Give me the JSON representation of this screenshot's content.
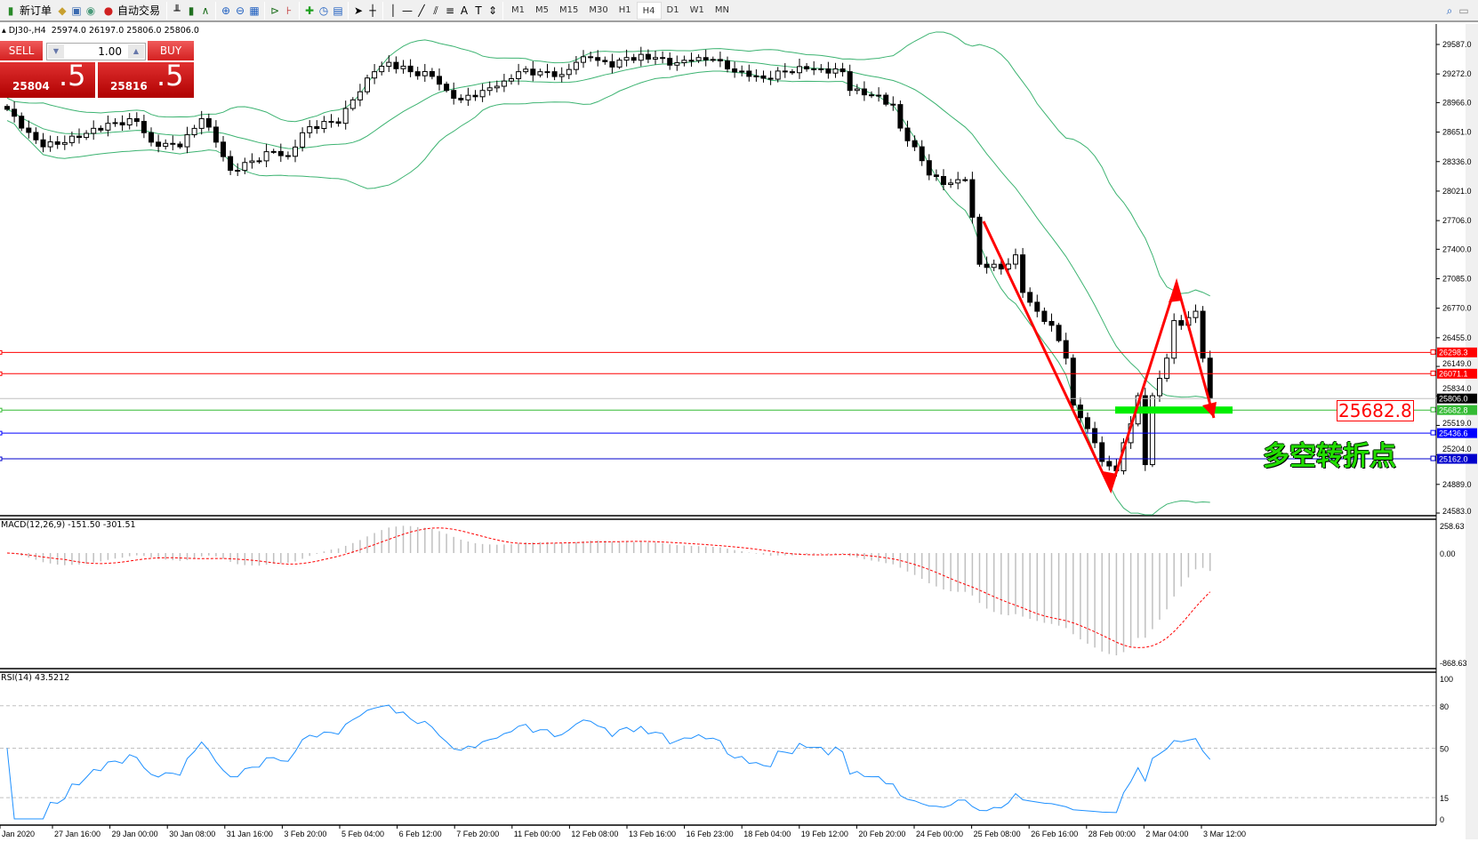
{
  "toolbar": {
    "new_order": "新订单",
    "auto_trading": "自动交易",
    "timeframes": [
      "M1",
      "M5",
      "M15",
      "M30",
      "H1",
      "H4",
      "D1",
      "W1",
      "MN"
    ],
    "active_timeframe": "H4",
    "icons": [
      "new-order-icon",
      "history-icon",
      "market-watch-icon",
      "signal-icon",
      "auto-trading-icon",
      "bar-chart-icon",
      "candlestick-icon",
      "line-chart-icon",
      "zoom-in-icon",
      "zoom-out-icon",
      "tile-windows-icon",
      "auto-scroll-icon",
      "chart-shift-icon",
      "indicators-icon",
      "periods-icon",
      "templates-icon",
      "cursor-icon",
      "crosshair-icon",
      "vertical-line-icon",
      "horizontal-line-icon",
      "trendline-icon",
      "equidistant-channel-icon",
      "fibonacci-icon",
      "text-icon",
      "text-label-icon",
      "arrows-icon",
      "search-icon",
      "chat-icon"
    ]
  },
  "header": {
    "symbol": "DJ30-,H4",
    "ohlc": "25974.0 26197.0 25806.0 25806.0"
  },
  "trade_panel": {
    "sell_label": "SELL",
    "buy_label": "BUY",
    "lot": "1.00",
    "sell_price_main": "25804",
    "sell_price_big": ".5",
    "buy_price_main": "25816",
    "buy_price_big": ".5"
  },
  "price_axis": [
    "29587.0",
    "29272.0",
    "28966.0",
    "28651.0",
    "28336.0",
    "28021.0",
    "27706.0",
    "27400.0",
    "27085.0",
    "26770.0",
    "26455.0",
    "26149.0",
    "25834.0",
    "25519.0",
    "25204.0",
    "24889.0",
    "24583.0"
  ],
  "hlines": [
    {
      "price": 26298.3,
      "label": "26298.3",
      "color": "#ff0000",
      "text_color": "#ffffff"
    },
    {
      "price": 26071.1,
      "label": "26071.1",
      "color": "#ff0000",
      "text_color": "#ffffff"
    },
    {
      "price": 25806.0,
      "label": "25806.0",
      "color": "#c0c0c0",
      "bg": "#000000",
      "text_color": "#ffffff"
    },
    {
      "price": 25682.8,
      "label": "25682.8",
      "color": "#33bb33",
      "text_color": "#ffffff"
    },
    {
      "price": 25436.6,
      "label": "25436.6",
      "color": "#0000ff",
      "text_color": "#ffffff"
    },
    {
      "price": 25162.0,
      "label": "25162.0",
      "color": "#0000cc",
      "text_color": "#ffffff"
    }
  ],
  "annotation": {
    "price_label": "25682.8",
    "text": "多空转折点",
    "text_color": "#22dd00"
  },
  "macd": {
    "label": "MACD(12,26,9) -151.50 -301.51",
    "axis": [
      "258.63",
      "0.00",
      "-868.63"
    ]
  },
  "rsi": {
    "label": "RSI(14) 43.5212",
    "axis": [
      "100",
      "80",
      "50",
      "15",
      "0"
    ]
  },
  "time_axis": [
    "Jan 2020",
    "27 Jan 16:00",
    "29 Jan 00:00",
    "30 Jan 08:00",
    "31 Jan 16:00",
    "3 Feb 20:00",
    "5 Feb 04:00",
    "6 Feb 12:00",
    "7 Feb 20:00",
    "11 Feb 00:00",
    "12 Feb 08:00",
    "13 Feb 16:00",
    "16 Feb 23:00",
    "18 Feb 04:00",
    "19 Feb 12:00",
    "20 Feb 20:00",
    "24 Feb 00:00",
    "25 Feb 08:00",
    "26 Feb 16:00",
    "28 Feb 00:00",
    "2 Mar 04:00",
    "3 Mar 12:00"
  ],
  "chart_data": {
    "type": "candlestick",
    "symbol": "DJ30-",
    "timeframe": "H4",
    "ylim": [
      24583,
      29587
    ],
    "close_keypoints": [
      [
        0,
        28895
      ],
      [
        2,
        28694
      ],
      [
        5,
        28494
      ],
      [
        10,
        28594
      ],
      [
        14,
        28745
      ],
      [
        18,
        28765
      ],
      [
        20,
        28544
      ],
      [
        24,
        28494
      ],
      [
        27,
        28795
      ],
      [
        29,
        28544
      ],
      [
        31,
        28243
      ],
      [
        34,
        28343
      ],
      [
        37,
        28444
      ],
      [
        39,
        28393
      ],
      [
        41,
        28644
      ],
      [
        44,
        28765
      ],
      [
        46,
        28745
      ],
      [
        48,
        28995
      ],
      [
        51,
        29296
      ],
      [
        53,
        29396
      ],
      [
        56,
        29296
      ],
      [
        59,
        29246
      ],
      [
        61,
        29096
      ],
      [
        63,
        28995
      ],
      [
        66,
        29096
      ],
      [
        69,
        29196
      ],
      [
        71,
        29296
      ],
      [
        74,
        29296
      ],
      [
        77,
        29266
      ],
      [
        79,
        29396
      ],
      [
        81,
        29447
      ],
      [
        84,
        29346
      ],
      [
        86,
        29447
      ],
      [
        90,
        29447
      ],
      [
        92,
        29366
      ],
      [
        95,
        29416
      ],
      [
        98,
        29427
      ],
      [
        100,
        29326
      ],
      [
        103,
        29246
      ],
      [
        105,
        29226
      ],
      [
        108,
        29296
      ],
      [
        111,
        29326
      ],
      [
        113,
        29326
      ],
      [
        116,
        29296
      ],
      [
        117,
        29096
      ],
      [
        120,
        29045
      ],
      [
        123,
        28945
      ],
      [
        124,
        28694
      ],
      [
        126,
        28494
      ],
      [
        128,
        28193
      ],
      [
        130,
        28092
      ],
      [
        132,
        28143
      ],
      [
        133,
        28143
      ],
      [
        134,
        27742
      ],
      [
        135,
        27240
      ],
      [
        137,
        27240
      ],
      [
        138,
        27190
      ],
      [
        140,
        27340
      ],
      [
        141,
        26939
      ],
      [
        143,
        26738
      ],
      [
        145,
        26588
      ],
      [
        147,
        26237
      ],
      [
        148,
        25736
      ],
      [
        150,
        25485
      ],
      [
        151,
        25334
      ],
      [
        152,
        25134
      ],
      [
        154,
        25034
      ],
      [
        155,
        25334
      ],
      [
        156,
        25535
      ],
      [
        157,
        25836
      ],
      [
        158,
        25100
      ],
      [
        159,
        25836
      ],
      [
        161,
        26237
      ],
      [
        162,
        26638
      ],
      [
        163,
        26588
      ],
      [
        165,
        26738
      ],
      [
        166,
        26237
      ],
      [
        167,
        25806
      ]
    ],
    "bollinger": {
      "period": 20,
      "deviation": 2,
      "color": "#3cb371"
    },
    "trend_lines": {
      "color": "#ff0000"
    }
  }
}
